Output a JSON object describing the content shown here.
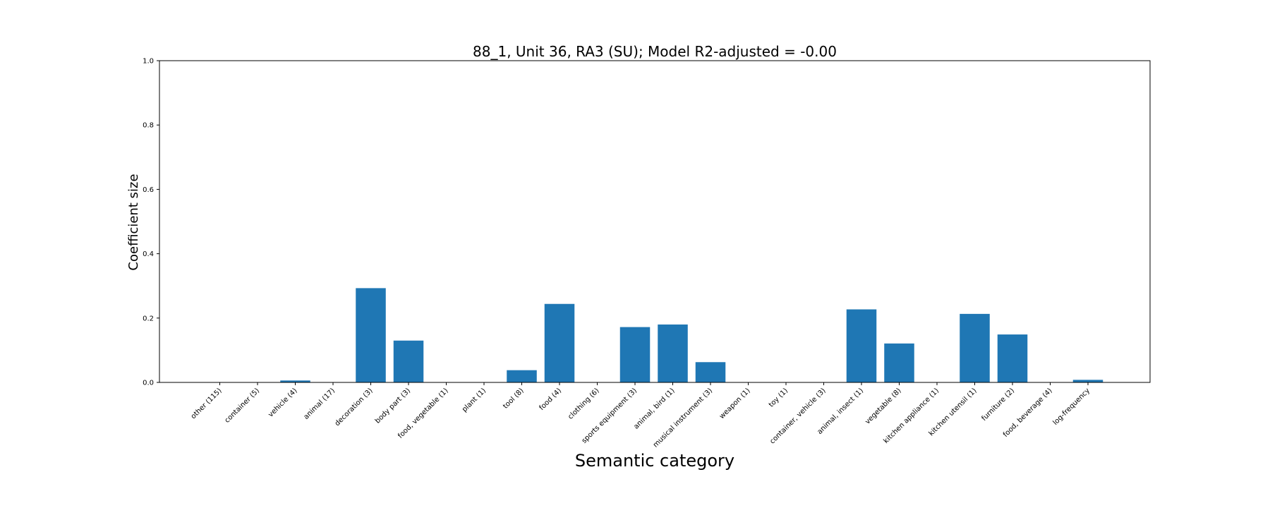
{
  "chart_data": {
    "type": "bar",
    "title": "88_1, Unit 36, RA3 (SU); Model R2-adjusted = -0.00",
    "xlabel": "Semantic category",
    "ylabel": "Coefficient size",
    "ylim": [
      0,
      1.0
    ],
    "yticks": [
      "0.0",
      "0.2",
      "0.4",
      "0.6",
      "0.8",
      "1.0"
    ],
    "categories": [
      "other (115)",
      "container (5)",
      "vehicle (4)",
      "animal (17)",
      "decoration (3)",
      "body part (3)",
      "food, vegetable (1)",
      "plant (1)",
      "tool (8)",
      "food (4)",
      "clothing (6)",
      "sports equipment (3)",
      "animal, bird (1)",
      "musical instrument (3)",
      "weapon (1)",
      "toy (1)",
      "container, vehicle (3)",
      "animal, insect (1)",
      "vegetable (8)",
      "kitchen appliance (1)",
      "kitchen utensil (1)",
      "furniture (2)",
      "food, beverage (4)",
      "log-frequency"
    ],
    "values": [
      0.0,
      0.0,
      0.006,
      0.0,
      0.293,
      0.13,
      0.0,
      0.0,
      0.038,
      0.244,
      0.0,
      0.172,
      0.18,
      0.063,
      0.0,
      0.0,
      0.0,
      0.227,
      0.121,
      0.0,
      0.213,
      0.149,
      0.0,
      0.008
    ],
    "bar_color": "#1f77b4",
    "grid": false,
    "legend": "none"
  }
}
